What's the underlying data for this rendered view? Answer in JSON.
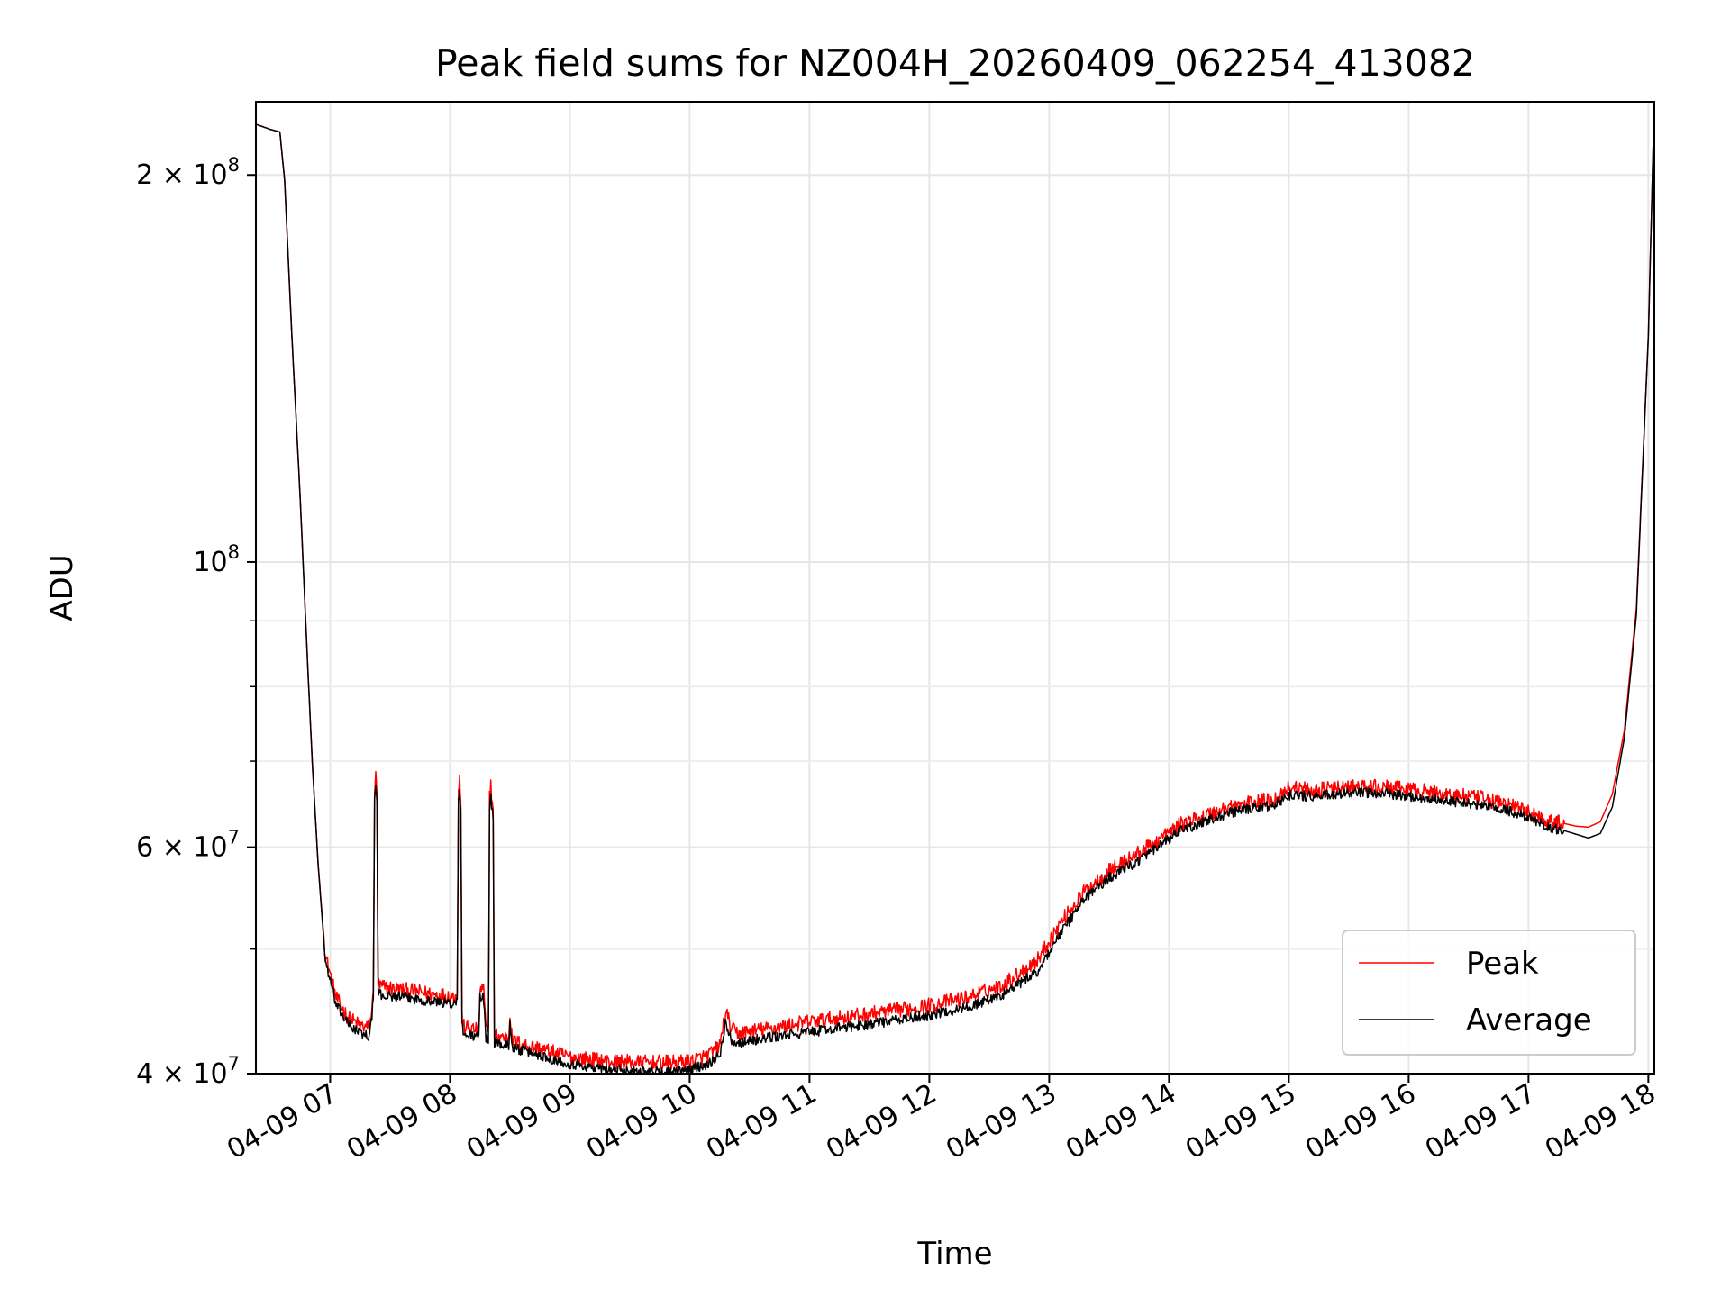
{
  "chart_data": {
    "type": "line",
    "title": "Peak field sums for NZ004H_20260409_062254_413082",
    "xlabel": "Time",
    "ylabel": "ADU",
    "yscale": "log",
    "xlim": [
      6.38,
      18.05
    ],
    "ylim": [
      40000000,
      228000000
    ],
    "x_ticks": [
      {
        "value": 7,
        "label": "04-09 07"
      },
      {
        "value": 8,
        "label": "04-09 08"
      },
      {
        "value": 9,
        "label": "04-09 09"
      },
      {
        "value": 10,
        "label": "04-09 10"
      },
      {
        "value": 11,
        "label": "04-09 11"
      },
      {
        "value": 12,
        "label": "04-09 12"
      },
      {
        "value": 13,
        "label": "04-09 13"
      },
      {
        "value": 14,
        "label": "04-09 14"
      },
      {
        "value": 15,
        "label": "04-09 15"
      },
      {
        "value": 16,
        "label": "04-09 16"
      },
      {
        "value": 17,
        "label": "04-09 17"
      },
      {
        "value": 18,
        "label": "04-09 18"
      }
    ],
    "y_major_ticks": [
      {
        "value": 40000000,
        "base": "4",
        "exp": "7"
      },
      {
        "value": 60000000,
        "base": "6",
        "exp": "7"
      },
      {
        "value": 100000000,
        "base": "",
        "exp": "8"
      },
      {
        "value": 200000000,
        "base": "2",
        "exp": "8"
      }
    ],
    "y_minor_ticks": [
      50000000,
      70000000,
      80000000,
      90000000
    ],
    "grid": true,
    "legend": {
      "position": "lower-right",
      "entries": [
        {
          "label": "Peak",
          "color": "#ff0000"
        },
        {
          "label": "Average",
          "color": "#000000"
        }
      ]
    },
    "series": [
      {
        "name": "Peak",
        "color": "#ff0000",
        "x": [
          6.38,
          6.5,
          6.58,
          6.62,
          6.68,
          6.75,
          6.8,
          6.85,
          6.9,
          6.96,
          7.05,
          7.15,
          7.25,
          7.33,
          7.36,
          7.37,
          7.38,
          7.39,
          7.4,
          7.41,
          7.45,
          7.6,
          7.8,
          8.05,
          8.06,
          8.07,
          8.08,
          8.09,
          8.1,
          8.11,
          8.2,
          8.24,
          8.25,
          8.28,
          8.3,
          8.32,
          8.33,
          8.34,
          8.36,
          8.37,
          8.45,
          8.49,
          8.5,
          8.51,
          8.52,
          8.6,
          8.8,
          9.0,
          9.3,
          9.6,
          9.9,
          10.0,
          10.15,
          10.25,
          10.3,
          10.35,
          10.4,
          10.7,
          11.0,
          11.5,
          12.0,
          12.3,
          12.6,
          12.9,
          13.1,
          13.3,
          13.5,
          13.8,
          14.1,
          14.5,
          14.9,
          15.0,
          15.2,
          15.5,
          15.8,
          16.2,
          16.6,
          16.9,
          17.1,
          17.2,
          17.3,
          17.4,
          17.5,
          17.6,
          17.7,
          17.8,
          17.9,
          18.0,
          18.05
        ],
        "values": [
          219000000,
          217000000,
          216000000,
          198000000,
          150000000,
          112000000,
          88000000,
          70000000,
          58000000,
          49500000,
          45800000,
          44200000,
          43600000,
          43400000,
          46000000,
          66500000,
          68000000,
          66000000,
          47000000,
          46800000,
          46700000,
          46500000,
          46200000,
          45900000,
          46500000,
          66000000,
          68200000,
          65000000,
          44500000,
          43500000,
          43300000,
          43200000,
          46500000,
          46500000,
          43300000,
          43100000,
          66000000,
          67000000,
          64000000,
          42900000,
          42700000,
          42600000,
          44700000,
          43300000,
          42400000,
          42200000,
          41700000,
          41200000,
          40900000,
          40800000,
          40800000,
          40900000,
          41300000,
          42000000,
          44700000,
          43300000,
          43000000,
          43400000,
          43900000,
          44500000,
          45200000,
          45800000,
          46800000,
          49000000,
          52500000,
          55500000,
          57500000,
          59800000,
          62500000,
          64500000,
          65500000,
          66800000,
          66400000,
          66800000,
          66800000,
          66200000,
          65500000,
          64500000,
          63300000,
          62800000,
          62600000,
          62300000,
          62200000,
          62800000,
          66000000,
          74000000,
          92000000,
          150000000,
          228000000
        ]
      },
      {
        "name": "Average",
        "color": "#000000",
        "x": [
          6.38,
          6.5,
          6.58,
          6.62,
          6.68,
          6.75,
          6.8,
          6.85,
          6.9,
          6.96,
          7.05,
          7.15,
          7.25,
          7.33,
          7.36,
          7.37,
          7.38,
          7.39,
          7.4,
          7.41,
          7.45,
          7.6,
          7.8,
          8.05,
          8.06,
          8.07,
          8.08,
          8.09,
          8.1,
          8.11,
          8.2,
          8.24,
          8.25,
          8.28,
          8.3,
          8.32,
          8.33,
          8.34,
          8.36,
          8.37,
          8.45,
          8.49,
          8.5,
          8.51,
          8.52,
          8.6,
          8.8,
          9.0,
          9.3,
          9.6,
          9.9,
          10.0,
          10.15,
          10.25,
          10.3,
          10.35,
          10.4,
          10.7,
          11.0,
          11.5,
          12.0,
          12.3,
          12.6,
          12.9,
          13.1,
          13.3,
          13.5,
          13.8,
          14.1,
          14.5,
          14.9,
          15.0,
          15.2,
          15.5,
          15.8,
          16.2,
          16.6,
          16.9,
          17.1,
          17.2,
          17.3,
          17.4,
          17.5,
          17.6,
          17.7,
          17.8,
          17.9,
          18.0,
          18.05
        ],
        "values": [
          219000000,
          217000000,
          216000000,
          198000000,
          150000000,
          112000000,
          88000000,
          70000000,
          58000000,
          49000000,
          45200000,
          43700000,
          43000000,
          42800000,
          45500000,
          65500000,
          66800000,
          65000000,
          46200000,
          46100000,
          46000000,
          45900000,
          45600000,
          45300000,
          45800000,
          65000000,
          66500000,
          64000000,
          43800000,
          42900000,
          42800000,
          42700000,
          45800000,
          45800000,
          42700000,
          42500000,
          64500000,
          65500000,
          63000000,
          42300000,
          42100000,
          42000000,
          44200000,
          42700000,
          41900000,
          41700000,
          41200000,
          40700000,
          40300000,
          40200000,
          40100000,
          40300000,
          40700000,
          41300000,
          43800000,
          42500000,
          42300000,
          42700000,
          43100000,
          43700000,
          44400000,
          45000000,
          46000000,
          48000000,
          51500000,
          54800000,
          56800000,
          59000000,
          61800000,
          63800000,
          64800000,
          65900000,
          65700000,
          66100000,
          66100000,
          65400000,
          64700000,
          63800000,
          62600000,
          62100000,
          61800000,
          61400000,
          61000000,
          61500000,
          64500000,
          73000000,
          91000000,
          150000000,
          228000000
        ]
      }
    ]
  }
}
